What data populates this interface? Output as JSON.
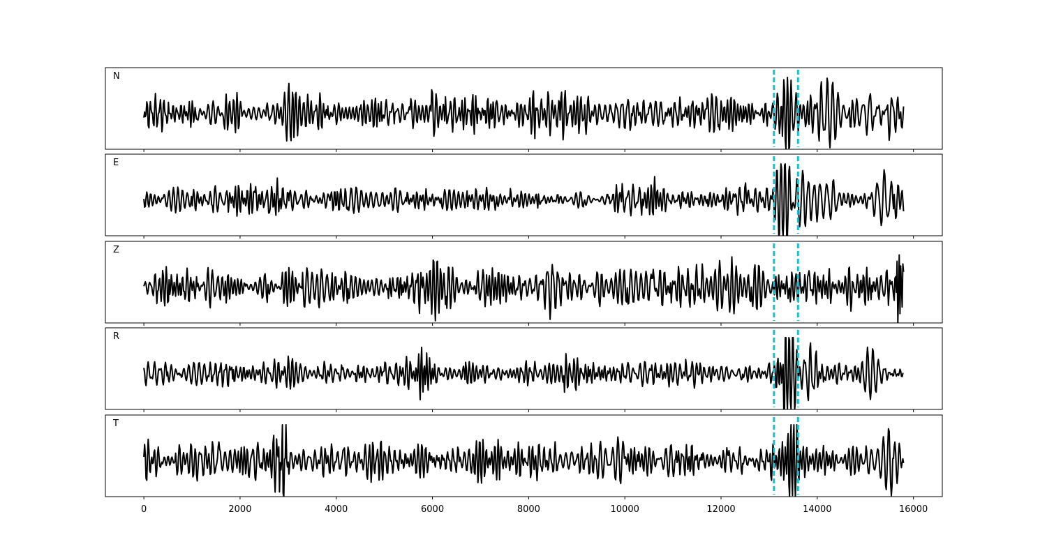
{
  "chart_data": {
    "type": "line",
    "sample_count": 15800,
    "xlim": [
      -800,
      16600
    ],
    "x_ticks": [
      "0",
      "2000",
      "4000",
      "6000",
      "8000",
      "10000",
      "12000",
      "14000",
      "16000"
    ],
    "x_tick_values": [
      0,
      2000,
      4000,
      6000,
      8000,
      10000,
      12000,
      14000,
      16000
    ],
    "line_color": "#000000",
    "marker_color": "#17becf",
    "markers": [
      13100,
      13600
    ],
    "panels": [
      {
        "label": "N",
        "noise_amp": 0.42,
        "segments": [
          {
            "x0": 2600,
            "x1": 3100,
            "gain": 1.5
          },
          {
            "x0": 6800,
            "x1": 7400,
            "gain": 1.4
          },
          {
            "x0": 9800,
            "x1": 10300,
            "gain": 1.2
          }
        ],
        "events": [
          {
            "x": 13380,
            "amp": 1.05,
            "period": 70,
            "decay": 90
          },
          {
            "x": 13520,
            "amp": -0.75,
            "period": 90,
            "decay": 110
          },
          {
            "x": 14200,
            "amp": 0.55,
            "period": 120,
            "decay": 200
          },
          {
            "x": 15100,
            "amp": 0.6,
            "period": 140,
            "decay": 160
          },
          {
            "x": 15500,
            "amp": -0.55,
            "period": 120,
            "decay": 150
          }
        ]
      },
      {
        "label": "E",
        "noise_amp": 0.28,
        "segments": [
          {
            "x0": 2700,
            "x1": 3000,
            "gain": 1.6
          },
          {
            "x0": 5700,
            "x1": 5900,
            "gain": 1.5
          },
          {
            "x0": 10600,
            "x1": 11000,
            "gain": 1.3
          }
        ],
        "events": [
          {
            "x": 13330,
            "amp": 1.1,
            "period": 90,
            "decay": 120
          },
          {
            "x": 13210,
            "amp": -0.85,
            "period": 80,
            "decay": 90
          },
          {
            "x": 13700,
            "amp": 0.85,
            "period": 120,
            "decay": 160
          },
          {
            "x": 14200,
            "amp": 0.45,
            "period": 140,
            "decay": 200
          },
          {
            "x": 15400,
            "amp": 0.6,
            "period": 150,
            "decay": 180
          }
        ]
      },
      {
        "label": "Z",
        "noise_amp": 0.45,
        "segments": [
          {
            "x0": 5700,
            "x1": 6200,
            "gain": 1.5
          },
          {
            "x0": 8200,
            "x1": 8500,
            "gain": 1.4
          },
          {
            "x0": 10400,
            "x1": 11000,
            "gain": 1.4
          }
        ],
        "events": [
          {
            "x": 15700,
            "amp": 1.05,
            "period": 40,
            "decay": 50
          },
          {
            "x": 13600,
            "amp": -0.5,
            "period": 90,
            "decay": 100
          },
          {
            "x": 12100,
            "amp": 0.45,
            "period": 120,
            "decay": 150
          }
        ]
      },
      {
        "label": "R",
        "noise_amp": 0.28,
        "segments": [
          {
            "x0": 2700,
            "x1": 3000,
            "gain": 1.5
          },
          {
            "x0": 5700,
            "x1": 5900,
            "gain": 1.6
          },
          {
            "x0": 8600,
            "x1": 9000,
            "gain": 1.2
          }
        ],
        "events": [
          {
            "x": 13290,
            "amp": 0.95,
            "period": 60,
            "decay": 80
          },
          {
            "x": 13380,
            "amp": -1.15,
            "period": 80,
            "decay": 110
          },
          {
            "x": 13490,
            "amp": 0.75,
            "period": 80,
            "decay": 110
          },
          {
            "x": 13800,
            "amp": -0.6,
            "period": 120,
            "decay": 180
          },
          {
            "x": 15100,
            "amp": -0.75,
            "period": 110,
            "decay": 140
          }
        ]
      },
      {
        "label": "T",
        "noise_amp": 0.45,
        "segments": [
          {
            "x0": 2700,
            "x1": 3050,
            "gain": 1.9
          },
          {
            "x0": 9000,
            "x1": 9400,
            "gain": 1.5
          },
          {
            "x0": 6600,
            "x1": 7300,
            "gain": 1.3
          }
        ],
        "events": [
          {
            "x": 2880,
            "amp": 1.05,
            "period": 40,
            "decay": 60
          },
          {
            "x": 13450,
            "amp": 1.0,
            "period": 60,
            "decay": 90
          },
          {
            "x": 13550,
            "amp": -0.95,
            "period": 70,
            "decay": 100
          },
          {
            "x": 15600,
            "amp": 0.65,
            "period": 110,
            "decay": 140
          }
        ]
      }
    ]
  }
}
